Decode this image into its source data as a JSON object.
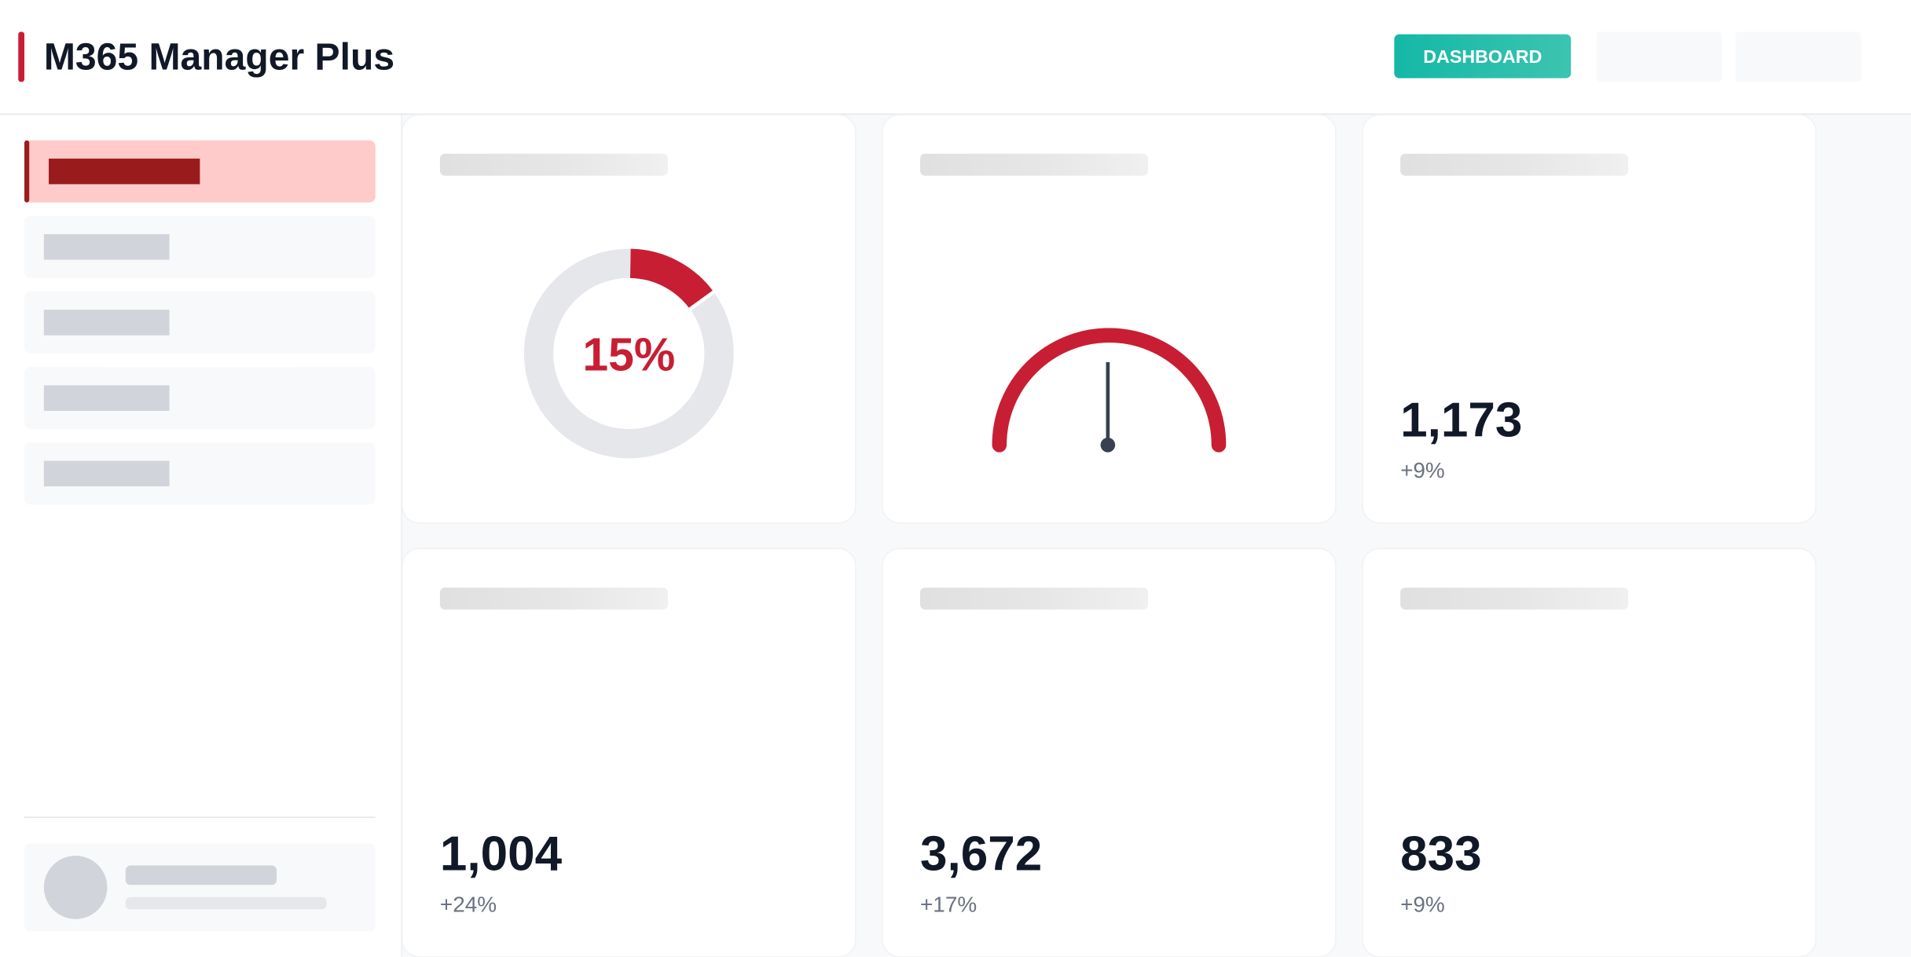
{
  "header": {
    "title": "M365 Manager Plus",
    "nav_button": "DASHBOARD"
  },
  "cards": [
    {
      "type": "donut",
      "percent": {
        "value": 15,
        "label": "15%"
      }
    },
    {
      "type": "gauge"
    },
    {
      "type": "stat",
      "value": "1,173",
      "change": "+9%"
    },
    {
      "type": "stat",
      "value": "1,004",
      "change": "+24%"
    },
    {
      "type": "stat",
      "value": "3,672",
      "change": "+17%"
    },
    {
      "type": "stat",
      "value": "833",
      "change": "+9%"
    }
  ]
}
